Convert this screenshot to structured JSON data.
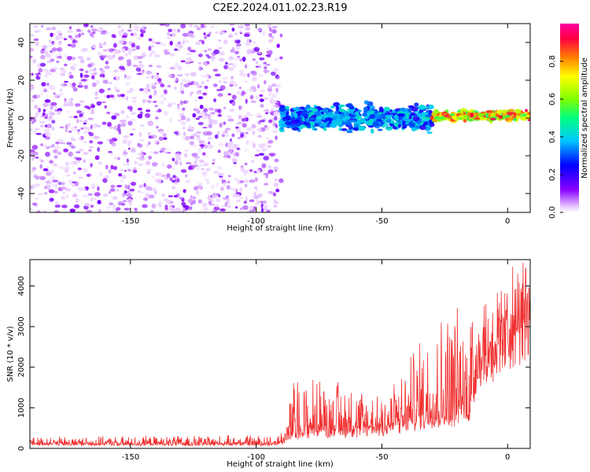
{
  "title": "C2E2.2024.011.02.23.R19",
  "colors": {
    "snr_line": "#f03030",
    "axis": "#000000",
    "low_amplitude": "#c080f0",
    "colormap": [
      "#ffffff",
      "#e8c8ff",
      "#8a00ff",
      "#0000ff",
      "#00c8ff",
      "#00ff80",
      "#80ff00",
      "#ffff00",
      "#ff8000",
      "#ff0040",
      "#ff00a0"
    ]
  },
  "chart_data": [
    {
      "type": "heatmap",
      "title": "C2E2.2024.011.02.23.R19",
      "xlabel": "Height of straight line (km)",
      "ylabel": "Frequency (Hz)",
      "xlim": [
        -190,
        9
      ],
      "ylim": [
        -50,
        50
      ],
      "xticks": [
        -150,
        -100,
        -50,
        0
      ],
      "yticks": [
        -40,
        -20,
        0,
        20,
        40
      ],
      "grid": false,
      "colorbar": {
        "label": "Normalized spectral amplitude",
        "range": [
          0,
          1
        ],
        "ticks": [
          0.0,
          0.2,
          0.4,
          0.6,
          0.8
        ],
        "tick_labels": [
          "0.0",
          "0.2",
          "0.4",
          "0.6",
          "0.8"
        ]
      },
      "regions": [
        {
          "x_range": [
            -190,
            -90
          ],
          "y_range": [
            -50,
            50
          ],
          "amplitude": [
            0.02,
            0.15
          ],
          "description": "broadband noise"
        },
        {
          "x_range": [
            -90,
            -30
          ],
          "center_freq": 0,
          "width_hz": 10,
          "amplitude": [
            0.2,
            0.45
          ]
        },
        {
          "x_range": [
            -30,
            9
          ],
          "center_freq": 1,
          "width_hz": 4,
          "amplitude": [
            0.5,
            0.95
          ]
        }
      ]
    },
    {
      "type": "line",
      "xlabel": "Height of straight line (km)",
      "ylabel": "SNR (10 * v/v)",
      "xlim": [
        -190,
        9
      ],
      "ylim": [
        0,
        4650
      ],
      "xticks": [
        -150,
        -100,
        -50,
        0
      ],
      "yticks": [
        0,
        1000,
        2000,
        3000,
        4000
      ],
      "grid": false,
      "series": [
        {
          "color": "#f03030",
          "envelope_x": [
            -190,
            -92,
            -89,
            -85,
            -75,
            -60,
            -50,
            -40,
            -30,
            -20,
            -15,
            -12,
            -5,
            0,
            5,
            9
          ],
          "envelope_baseline": [
            100,
            100,
            150,
            350,
            400,
            420,
            450,
            600,
            750,
            800,
            900,
            2200,
            2600,
            2900,
            3300,
            3500
          ],
          "envelope_peak": [
            280,
            320,
            600,
            1700,
            1800,
            1600,
            1400,
            2100,
            3300,
            3700,
            3800,
            3700,
            3900,
            4100,
            4300,
            4650
          ]
        }
      ]
    }
  ]
}
